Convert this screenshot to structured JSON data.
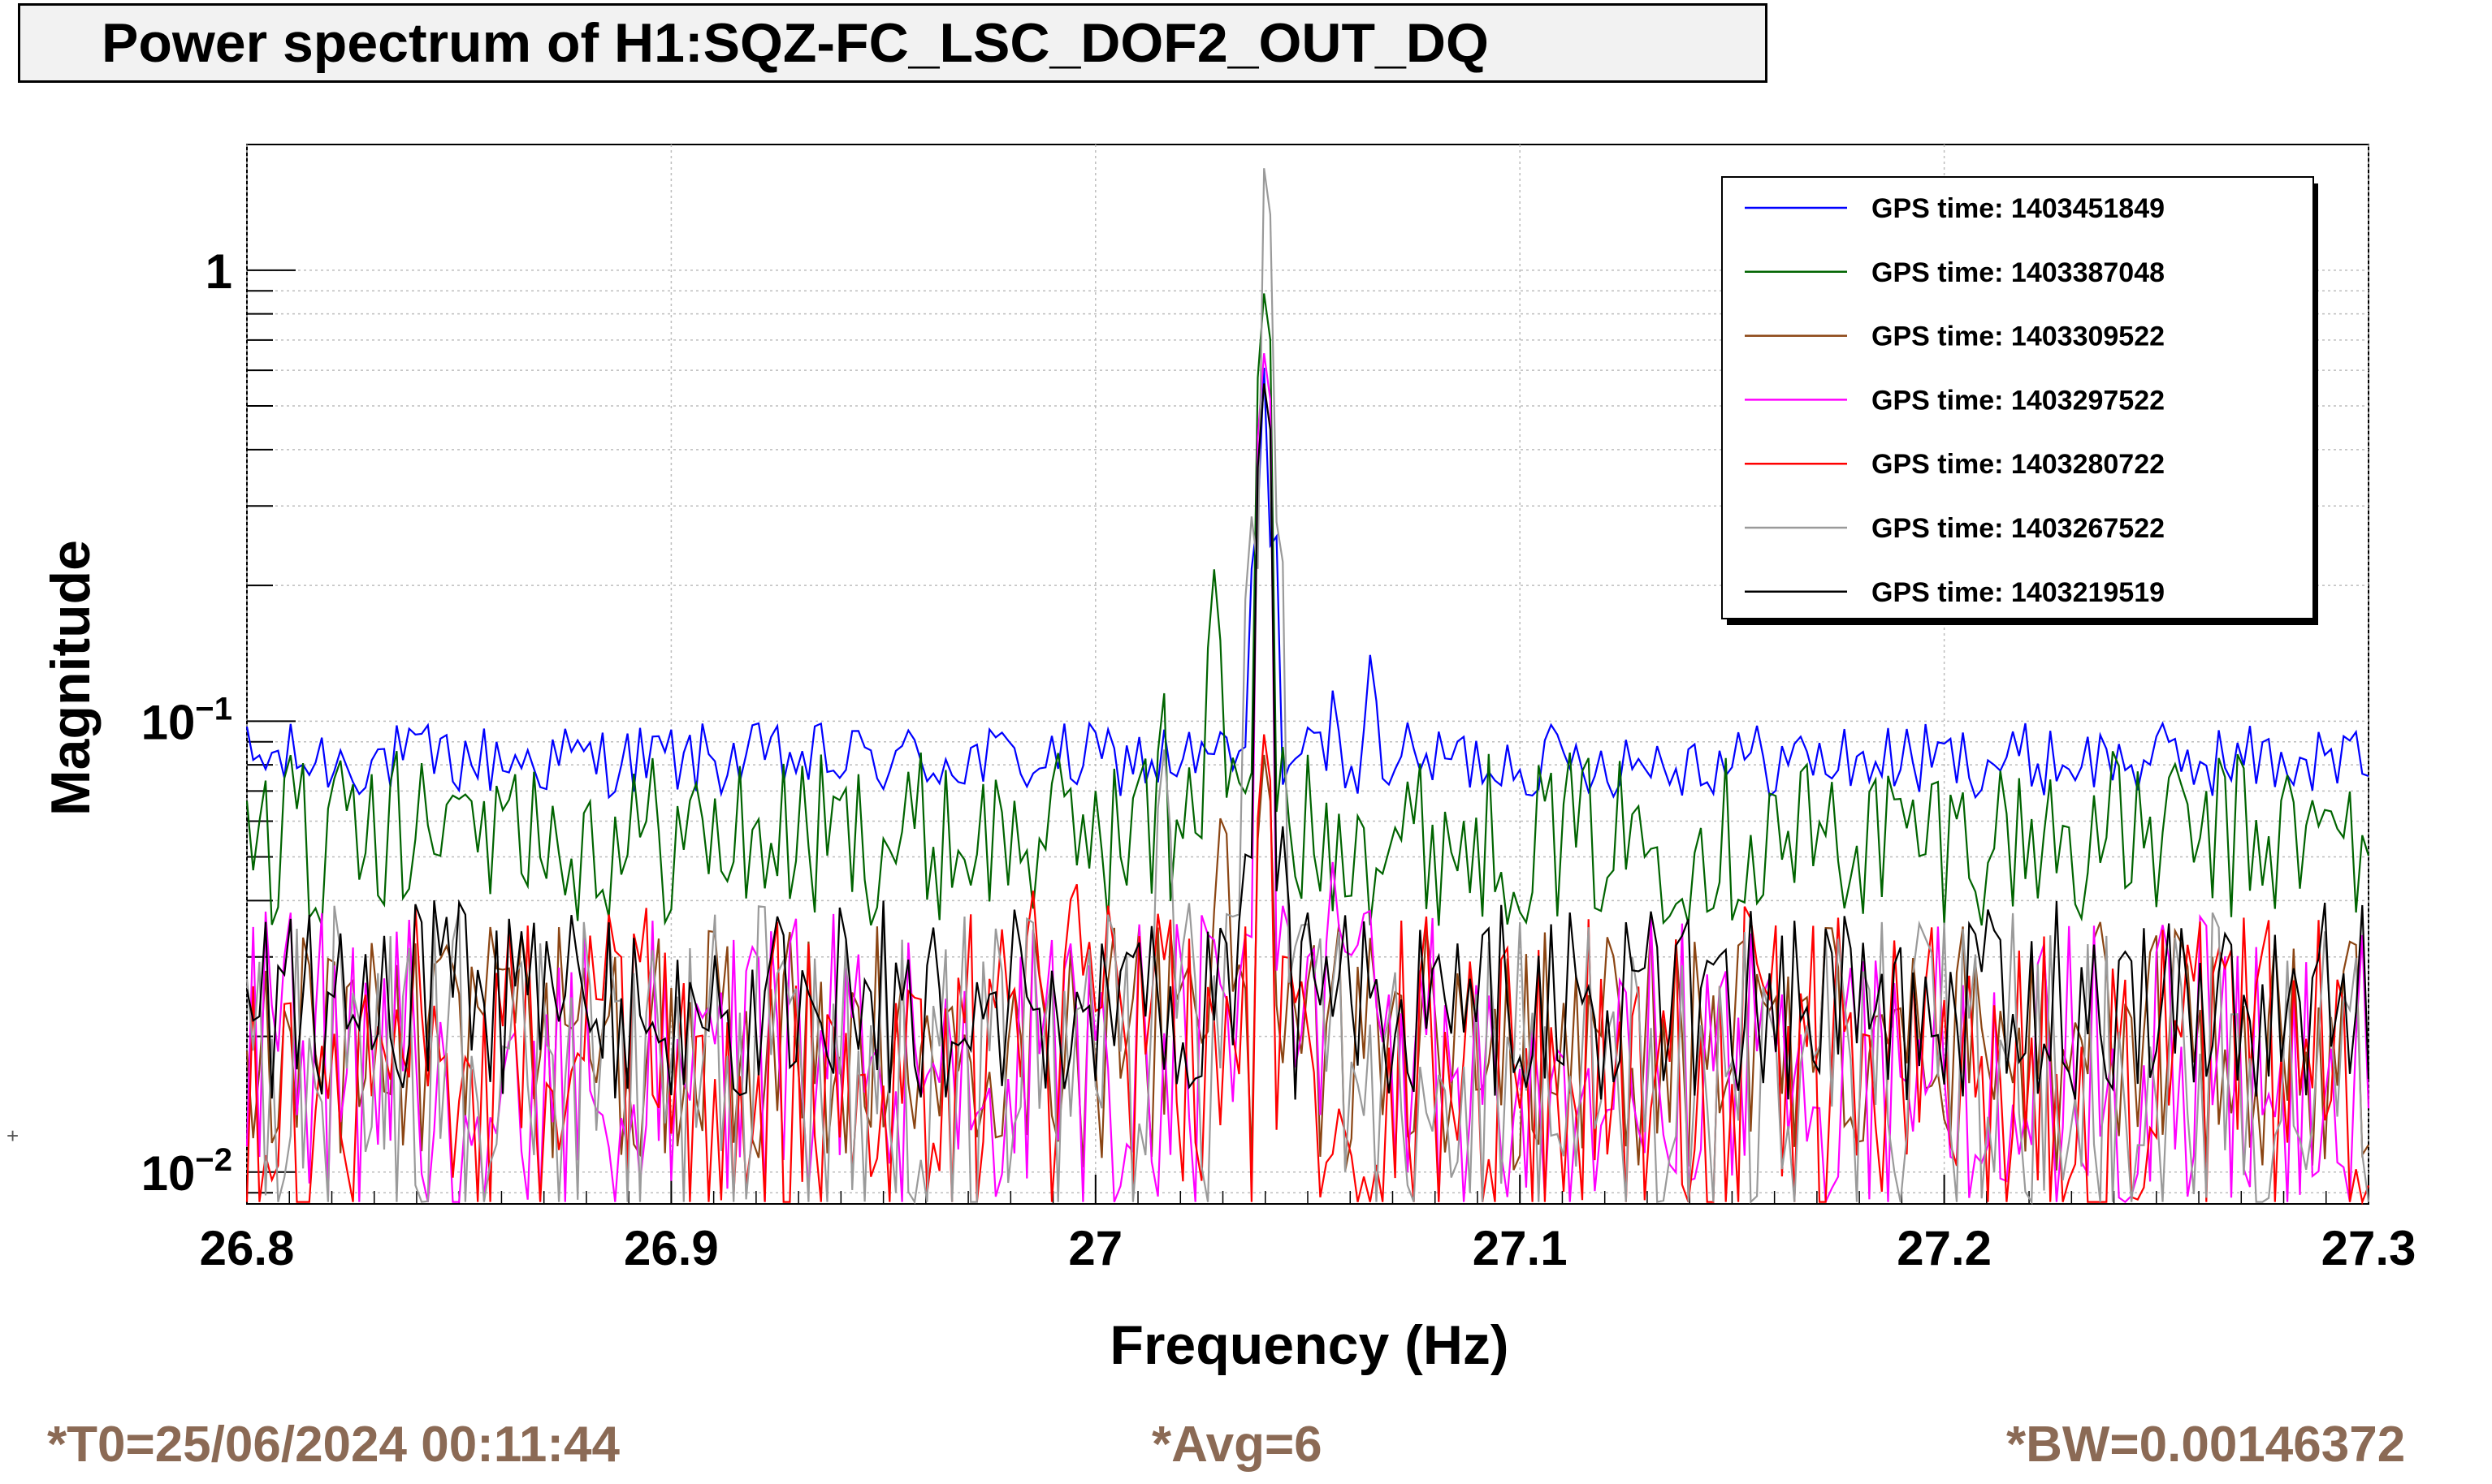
{
  "title": "Power spectrum of H1:SQZ-FC_LSC_DOF2_OUT_DQ",
  "footer": {
    "t0": "*T0=25/06/2024 00:11:44",
    "avg": "*Avg=6",
    "bw": "*BW=0.00146372"
  },
  "chart_data": {
    "type": "line",
    "title": "Power spectrum of H1:SQZ-FC_LSC_DOF2_OUT_DQ",
    "xlabel": "Frequency (Hz)",
    "ylabel": "Magnitude",
    "xlim": [
      26.8,
      27.3
    ],
    "ylim": [
      0.0085,
      1.9
    ],
    "yscale": "log",
    "grid": true,
    "legend_position": "top-right",
    "x_ticks": [
      "26.8",
      "26.9",
      "27",
      "27.1",
      "27.2",
      "27.3"
    ],
    "y_ticks": [
      {
        "value": 0.01,
        "label": "10",
        "exp": "−2"
      },
      {
        "value": 0.1,
        "label": "10",
        "exp": "−1"
      },
      {
        "value": 1,
        "label": "1",
        "exp": ""
      }
    ],
    "series": [
      {
        "name": "GPS time: 1403451849",
        "color": "#0000ff",
        "base": 0.082,
        "jitter": 0.06,
        "x": [
          27.026,
          27.033,
          27.038,
          27.04,
          27.042,
          27.045,
          27.052,
          27.056,
          27.06,
          27.065,
          27.07
        ],
        "values": [
          0.07,
          0.08,
          0.3,
          0.65,
          0.3,
          0.08,
          0.06,
          0.12,
          0.085,
          0.15,
          0.09
        ]
      },
      {
        "name": "GPS time: 1403387048",
        "color": "#006400",
        "base": 0.055,
        "jitter": 0.14,
        "x": [
          27.0,
          27.01,
          27.016,
          27.018,
          27.022,
          27.028,
          27.032,
          27.036,
          27.04,
          27.044,
          27.05,
          27.058,
          27.062
        ],
        "values": [
          0.07,
          0.08,
          0.12,
          0.025,
          0.08,
          0.22,
          0.09,
          0.07,
          0.95,
          0.09,
          0.06,
          0.05,
          0.065
        ]
      },
      {
        "name": "GPS time: 1403309522",
        "color": "#8b4513",
        "base": 0.019,
        "jitter": 0.2,
        "x": [
          27.02,
          27.03,
          27.034,
          27.04,
          27.046
        ],
        "values": [
          0.03,
          0.07,
          0.03,
          0.09,
          0.03
        ]
      },
      {
        "name": "GPS time: 1403297522",
        "color": "#ff00ff",
        "base": 0.017,
        "jitter": 0.25,
        "x": [
          27.03,
          27.036,
          27.04,
          27.044,
          27.05,
          27.056,
          27.06,
          27.064
        ],
        "values": [
          0.03,
          0.04,
          0.7,
          0.04,
          0.03,
          0.05,
          0.03,
          0.045
        ]
      },
      {
        "name": "GPS time: 1403280722",
        "color": "#ff0000",
        "base": 0.016,
        "jitter": 0.28,
        "x": [
          26.978,
          26.985,
          26.995,
          27.005,
          27.015,
          27.04,
          27.048
        ],
        "values": [
          0.035,
          0.045,
          0.05,
          0.03,
          0.04,
          0.1,
          0.03
        ]
      },
      {
        "name": "GPS time: 1403267522",
        "color": "#9a9a9a",
        "base": 0.016,
        "jitter": 0.28,
        "x": [
          27.016,
          27.022,
          27.032,
          27.037,
          27.04,
          27.043,
          27.048
        ],
        "values": [
          0.09,
          0.04,
          0.04,
          0.3,
          1.8,
          0.3,
          0.04
        ]
      },
      {
        "name": "GPS time: 1403219519",
        "color": "#000000",
        "base": 0.024,
        "jitter": 0.16,
        "x": [
          27.03,
          27.036,
          27.04,
          27.044,
          27.05
        ],
        "values": [
          0.04,
          0.06,
          0.6,
          0.06,
          0.03
        ]
      }
    ]
  }
}
